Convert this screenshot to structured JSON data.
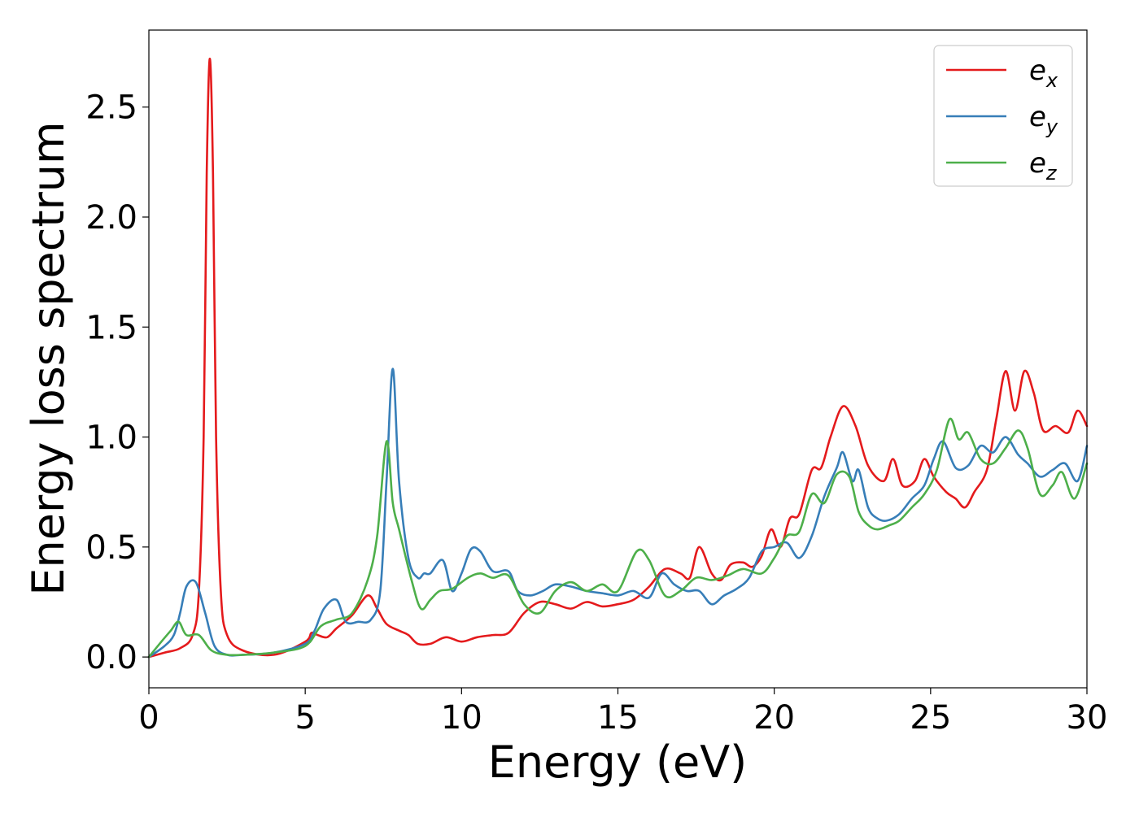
{
  "chart_data": {
    "type": "line",
    "title": "",
    "xlabel": "Energy (eV)",
    "ylabel": "Energy loss spectrum",
    "xlim": [
      0,
      30
    ],
    "ylim": [
      -0.14,
      2.85
    ],
    "xticks": [
      0,
      5,
      10,
      15,
      20,
      25,
      30
    ],
    "xtick_labels": [
      "0",
      "5",
      "10",
      "15",
      "20",
      "25",
      "30"
    ],
    "yticks": [
      0.0,
      0.5,
      1.0,
      1.5,
      2.0,
      2.5
    ],
    "ytick_labels": [
      "0.0",
      "0.5",
      "1.0",
      "1.5",
      "2.0",
      "2.5"
    ],
    "grid": false,
    "legend_position": "top-right",
    "series": [
      {
        "name": "e",
        "subscript": "x",
        "color": "#e41a1c",
        "points": [
          [
            0,
            0
          ],
          [
            0.5,
            0.02
          ],
          [
            1.0,
            0.04
          ],
          [
            1.4,
            0.1
          ],
          [
            1.6,
            0.3
          ],
          [
            1.75,
            1.0
          ],
          [
            1.85,
            2.2
          ],
          [
            1.95,
            2.72
          ],
          [
            2.05,
            2.2
          ],
          [
            2.15,
            1.0
          ],
          [
            2.3,
            0.3
          ],
          [
            2.5,
            0.1
          ],
          [
            3,
            0.03
          ],
          [
            4,
            0.01
          ],
          [
            5,
            0.07
          ],
          [
            5.2,
            0.11
          ],
          [
            5.4,
            0.1
          ],
          [
            5.7,
            0.09
          ],
          [
            6,
            0.13
          ],
          [
            6.5,
            0.19
          ],
          [
            7.0,
            0.28
          ],
          [
            7.3,
            0.22
          ],
          [
            7.6,
            0.15
          ],
          [
            8.0,
            0.12
          ],
          [
            8.3,
            0.1
          ],
          [
            8.6,
            0.06
          ],
          [
            9,
            0.06
          ],
          [
            9.5,
            0.09
          ],
          [
            10,
            0.07
          ],
          [
            10.5,
            0.09
          ],
          [
            11,
            0.1
          ],
          [
            11.5,
            0.11
          ],
          [
            12,
            0.2
          ],
          [
            12.5,
            0.25
          ],
          [
            13,
            0.24
          ],
          [
            13.5,
            0.22
          ],
          [
            14,
            0.25
          ],
          [
            14.5,
            0.23
          ],
          [
            15,
            0.24
          ],
          [
            15.5,
            0.26
          ],
          [
            16,
            0.32
          ],
          [
            16.5,
            0.4
          ],
          [
            17,
            0.38
          ],
          [
            17.3,
            0.36
          ],
          [
            17.6,
            0.5
          ],
          [
            18,
            0.38
          ],
          [
            18.3,
            0.35
          ],
          [
            18.6,
            0.42
          ],
          [
            19,
            0.43
          ],
          [
            19.3,
            0.41
          ],
          [
            19.6,
            0.46
          ],
          [
            19.9,
            0.58
          ],
          [
            20.2,
            0.5
          ],
          [
            20.5,
            0.63
          ],
          [
            20.8,
            0.65
          ],
          [
            21.2,
            0.85
          ],
          [
            21.5,
            0.86
          ],
          [
            21.8,
            1.0
          ],
          [
            22.2,
            1.14
          ],
          [
            22.6,
            1.05
          ],
          [
            23,
            0.87
          ],
          [
            23.5,
            0.8
          ],
          [
            23.8,
            0.9
          ],
          [
            24.1,
            0.78
          ],
          [
            24.5,
            0.8
          ],
          [
            24.8,
            0.9
          ],
          [
            25.1,
            0.82
          ],
          [
            25.5,
            0.75
          ],
          [
            25.8,
            0.72
          ],
          [
            26.1,
            0.68
          ],
          [
            26.4,
            0.75
          ],
          [
            26.8,
            0.85
          ],
          [
            27.1,
            1.08
          ],
          [
            27.4,
            1.3
          ],
          [
            27.7,
            1.12
          ],
          [
            28.0,
            1.3
          ],
          [
            28.3,
            1.2
          ],
          [
            28.6,
            1.03
          ],
          [
            29,
            1.05
          ],
          [
            29.4,
            1.02
          ],
          [
            29.7,
            1.12
          ],
          [
            30,
            1.05
          ]
        ]
      },
      {
        "name": "e",
        "subscript": "y",
        "color": "#377eb8",
        "points": [
          [
            0,
            0
          ],
          [
            0.5,
            0.05
          ],
          [
            0.8,
            0.1
          ],
          [
            1.0,
            0.2
          ],
          [
            1.2,
            0.32
          ],
          [
            1.5,
            0.34
          ],
          [
            1.8,
            0.2
          ],
          [
            2.1,
            0.05
          ],
          [
            2.5,
            0.01
          ],
          [
            3,
            0.01
          ],
          [
            4,
            0.02
          ],
          [
            5,
            0.06
          ],
          [
            5.3,
            0.12
          ],
          [
            5.6,
            0.22
          ],
          [
            6,
            0.26
          ],
          [
            6.3,
            0.16
          ],
          [
            6.7,
            0.16
          ],
          [
            7.1,
            0.17
          ],
          [
            7.4,
            0.3
          ],
          [
            7.6,
            0.8
          ],
          [
            7.8,
            1.31
          ],
          [
            8.0,
            0.8
          ],
          [
            8.3,
            0.45
          ],
          [
            8.6,
            0.36
          ],
          [
            8.8,
            0.38
          ],
          [
            9.0,
            0.38
          ],
          [
            9.4,
            0.44
          ],
          [
            9.7,
            0.3
          ],
          [
            10.0,
            0.38
          ],
          [
            10.3,
            0.49
          ],
          [
            10.6,
            0.48
          ],
          [
            11,
            0.39
          ],
          [
            11.5,
            0.39
          ],
          [
            11.8,
            0.3
          ],
          [
            12.2,
            0.28
          ],
          [
            12.6,
            0.3
          ],
          [
            13,
            0.33
          ],
          [
            13.5,
            0.32
          ],
          [
            14,
            0.3
          ],
          [
            14.5,
            0.29
          ],
          [
            15,
            0.28
          ],
          [
            15.5,
            0.3
          ],
          [
            16,
            0.27
          ],
          [
            16.4,
            0.38
          ],
          [
            16.8,
            0.33
          ],
          [
            17.2,
            0.3
          ],
          [
            17.6,
            0.3
          ],
          [
            18,
            0.24
          ],
          [
            18.4,
            0.28
          ],
          [
            18.8,
            0.31
          ],
          [
            19.2,
            0.36
          ],
          [
            19.6,
            0.48
          ],
          [
            20,
            0.5
          ],
          [
            20.4,
            0.52
          ],
          [
            20.8,
            0.45
          ],
          [
            21.2,
            0.55
          ],
          [
            21.6,
            0.73
          ],
          [
            22.0,
            0.86
          ],
          [
            22.2,
            0.93
          ],
          [
            22.5,
            0.8
          ],
          [
            22.7,
            0.85
          ],
          [
            23,
            0.68
          ],
          [
            23.3,
            0.63
          ],
          [
            23.6,
            0.62
          ],
          [
            24,
            0.65
          ],
          [
            24.4,
            0.72
          ],
          [
            24.8,
            0.78
          ],
          [
            25.1,
            0.9
          ],
          [
            25.4,
            0.98
          ],
          [
            25.8,
            0.86
          ],
          [
            26.2,
            0.87
          ],
          [
            26.6,
            0.96
          ],
          [
            27,
            0.93
          ],
          [
            27.4,
            1.0
          ],
          [
            27.8,
            0.92
          ],
          [
            28.1,
            0.88
          ],
          [
            28.5,
            0.82
          ],
          [
            28.9,
            0.85
          ],
          [
            29.3,
            0.88
          ],
          [
            29.7,
            0.8
          ],
          [
            30,
            0.96
          ]
        ]
      },
      {
        "name": "e",
        "subscript": "z",
        "color": "#4daf4a",
        "points": [
          [
            0,
            0
          ],
          [
            0.4,
            0.07
          ],
          [
            0.7,
            0.12
          ],
          [
            0.95,
            0.16
          ],
          [
            1.2,
            0.1
          ],
          [
            1.6,
            0.1
          ],
          [
            2.0,
            0.03
          ],
          [
            2.5,
            0.01
          ],
          [
            3,
            0.01
          ],
          [
            4,
            0.02
          ],
          [
            5,
            0.05
          ],
          [
            5.5,
            0.14
          ],
          [
            6,
            0.17
          ],
          [
            6.5,
            0.2
          ],
          [
            7,
            0.35
          ],
          [
            7.3,
            0.55
          ],
          [
            7.6,
            0.98
          ],
          [
            7.8,
            0.7
          ],
          [
            8.0,
            0.58
          ],
          [
            8.4,
            0.35
          ],
          [
            8.7,
            0.22
          ],
          [
            9.0,
            0.26
          ],
          [
            9.3,
            0.3
          ],
          [
            9.7,
            0.31
          ],
          [
            10.2,
            0.36
          ],
          [
            10.6,
            0.38
          ],
          [
            11,
            0.36
          ],
          [
            11.5,
            0.37
          ],
          [
            12,
            0.24
          ],
          [
            12.5,
            0.2
          ],
          [
            13,
            0.3
          ],
          [
            13.5,
            0.34
          ],
          [
            14,
            0.3
          ],
          [
            14.5,
            0.33
          ],
          [
            15,
            0.3
          ],
          [
            15.6,
            0.48
          ],
          [
            16,
            0.44
          ],
          [
            16.5,
            0.28
          ],
          [
            17,
            0.3
          ],
          [
            17.5,
            0.36
          ],
          [
            18,
            0.35
          ],
          [
            18.5,
            0.37
          ],
          [
            19,
            0.4
          ],
          [
            19.6,
            0.38
          ],
          [
            20,
            0.45
          ],
          [
            20.4,
            0.55
          ],
          [
            20.8,
            0.57
          ],
          [
            21.2,
            0.74
          ],
          [
            21.6,
            0.7
          ],
          [
            22,
            0.83
          ],
          [
            22.4,
            0.82
          ],
          [
            22.7,
            0.66
          ],
          [
            23,
            0.6
          ],
          [
            23.3,
            0.58
          ],
          [
            23.7,
            0.6
          ],
          [
            24,
            0.62
          ],
          [
            24.4,
            0.68
          ],
          [
            24.8,
            0.74
          ],
          [
            25.2,
            0.85
          ],
          [
            25.6,
            1.08
          ],
          [
            25.9,
            0.99
          ],
          [
            26.2,
            1.02
          ],
          [
            26.6,
            0.9
          ],
          [
            27.0,
            0.88
          ],
          [
            27.4,
            0.95
          ],
          [
            27.8,
            1.03
          ],
          [
            28.1,
            0.95
          ],
          [
            28.5,
            0.74
          ],
          [
            28.9,
            0.78
          ],
          [
            29.2,
            0.84
          ],
          [
            29.6,
            0.72
          ],
          [
            30,
            0.88
          ]
        ]
      }
    ]
  }
}
